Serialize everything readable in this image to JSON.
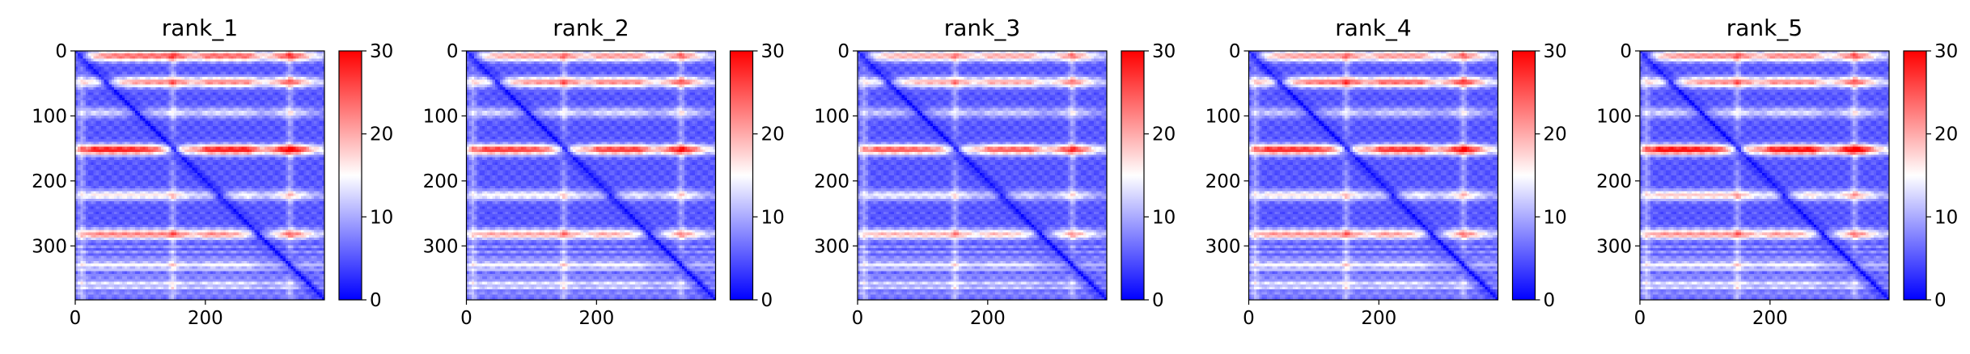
{
  "chart_data": [
    {
      "type": "heatmap",
      "title": "rank_1",
      "xticks": [
        0,
        200
      ],
      "yticks": [
        0,
        100,
        200,
        300
      ],
      "xlim": [
        0,
        383
      ],
      "ylim": [
        383,
        0
      ],
      "colorbar": {
        "ticks": [
          0,
          10,
          20,
          30
        ],
        "range": [
          0,
          30
        ],
        "colormap": "bwr",
        "colors": [
          "#0000ff",
          "#ffffff",
          "#ff0000"
        ]
      },
      "bands": [
        {
          "y": 152,
          "peak": 29
        },
        {
          "y": 48,
          "peak": 22
        },
        {
          "y": 282,
          "peak": 22
        },
        {
          "y": 8,
          "peak": 24
        },
        {
          "y": 222,
          "peak": 16
        },
        {
          "y": 95,
          "peak": 13
        },
        {
          "y": 330,
          "peak": 12
        },
        {
          "y": 360,
          "peak": 11
        }
      ],
      "hotspots_x": [
        40,
        95,
        150,
        220,
        250,
        330
      ]
    },
    {
      "type": "heatmap",
      "title": "rank_2",
      "xticks": [
        0,
        200
      ],
      "yticks": [
        0,
        100,
        200,
        300
      ],
      "xlim": [
        0,
        383
      ],
      "ylim": [
        383,
        0
      ],
      "colorbar": {
        "ticks": [
          0,
          10,
          20,
          30
        ],
        "range": [
          0,
          30
        ],
        "colormap": "bwr",
        "colors": [
          "#0000ff",
          "#ffffff",
          "#ff0000"
        ]
      },
      "bands": [
        {
          "y": 152,
          "peak": 27
        },
        {
          "y": 48,
          "peak": 22
        },
        {
          "y": 282,
          "peak": 20
        },
        {
          "y": 8,
          "peak": 21
        },
        {
          "y": 222,
          "peak": 15
        },
        {
          "y": 95,
          "peak": 13
        },
        {
          "y": 330,
          "peak": 12
        },
        {
          "y": 360,
          "peak": 11
        }
      ],
      "hotspots_x": [
        40,
        95,
        150,
        220,
        250,
        330
      ]
    },
    {
      "type": "heatmap",
      "title": "rank_3",
      "xticks": [
        0,
        200
      ],
      "yticks": [
        0,
        100,
        200,
        300
      ],
      "xlim": [
        0,
        383
      ],
      "ylim": [
        383,
        0
      ],
      "colorbar": {
        "ticks": [
          0,
          10,
          20,
          30
        ],
        "range": [
          0,
          30
        ],
        "colormap": "bwr",
        "colors": [
          "#0000ff",
          "#ffffff",
          "#ff0000"
        ]
      },
      "bands": [
        {
          "y": 152,
          "peak": 25
        },
        {
          "y": 48,
          "peak": 20
        },
        {
          "y": 282,
          "peak": 19
        },
        {
          "y": 8,
          "peak": 20
        },
        {
          "y": 222,
          "peak": 14
        },
        {
          "y": 95,
          "peak": 12
        },
        {
          "y": 330,
          "peak": 11
        },
        {
          "y": 360,
          "peak": 10
        }
      ],
      "hotspots_x": [
        40,
        95,
        150,
        220,
        250,
        330
      ]
    },
    {
      "type": "heatmap",
      "title": "rank_4",
      "xticks": [
        0,
        200
      ],
      "yticks": [
        0,
        100,
        200,
        300
      ],
      "xlim": [
        0,
        383
      ],
      "ylim": [
        383,
        0
      ],
      "colorbar": {
        "ticks": [
          0,
          10,
          20,
          30
        ],
        "range": [
          0,
          30
        ],
        "colormap": "bwr",
        "colors": [
          "#0000ff",
          "#ffffff",
          "#ff0000"
        ]
      },
      "bands": [
        {
          "y": 152,
          "peak": 28
        },
        {
          "y": 48,
          "peak": 24
        },
        {
          "y": 282,
          "peak": 21
        },
        {
          "y": 8,
          "peak": 21
        },
        {
          "y": 222,
          "peak": 16
        },
        {
          "y": 95,
          "peak": 12
        },
        {
          "y": 330,
          "peak": 12
        },
        {
          "y": 360,
          "peak": 11
        }
      ],
      "hotspots_x": [
        40,
        95,
        150,
        220,
        250,
        330
      ]
    },
    {
      "type": "heatmap",
      "title": "rank_5",
      "xticks": [
        0,
        200
      ],
      "yticks": [
        0,
        100,
        200,
        300
      ],
      "xlim": [
        0,
        383
      ],
      "ylim": [
        383,
        0
      ],
      "colorbar": {
        "ticks": [
          0,
          10,
          20,
          30
        ],
        "range": [
          0,
          30
        ],
        "colormap": "bwr",
        "colors": [
          "#0000ff",
          "#ffffff",
          "#ff0000"
        ]
      },
      "bands": [
        {
          "y": 152,
          "peak": 30
        },
        {
          "y": 48,
          "peak": 22
        },
        {
          "y": 282,
          "peak": 21
        },
        {
          "y": 8,
          "peak": 22
        },
        {
          "y": 222,
          "peak": 18
        },
        {
          "y": 95,
          "peak": 13
        },
        {
          "y": 330,
          "peak": 12
        },
        {
          "y": 360,
          "peak": 11
        }
      ],
      "hotspots_x": [
        40,
        95,
        150,
        220,
        250,
        330
      ]
    }
  ]
}
